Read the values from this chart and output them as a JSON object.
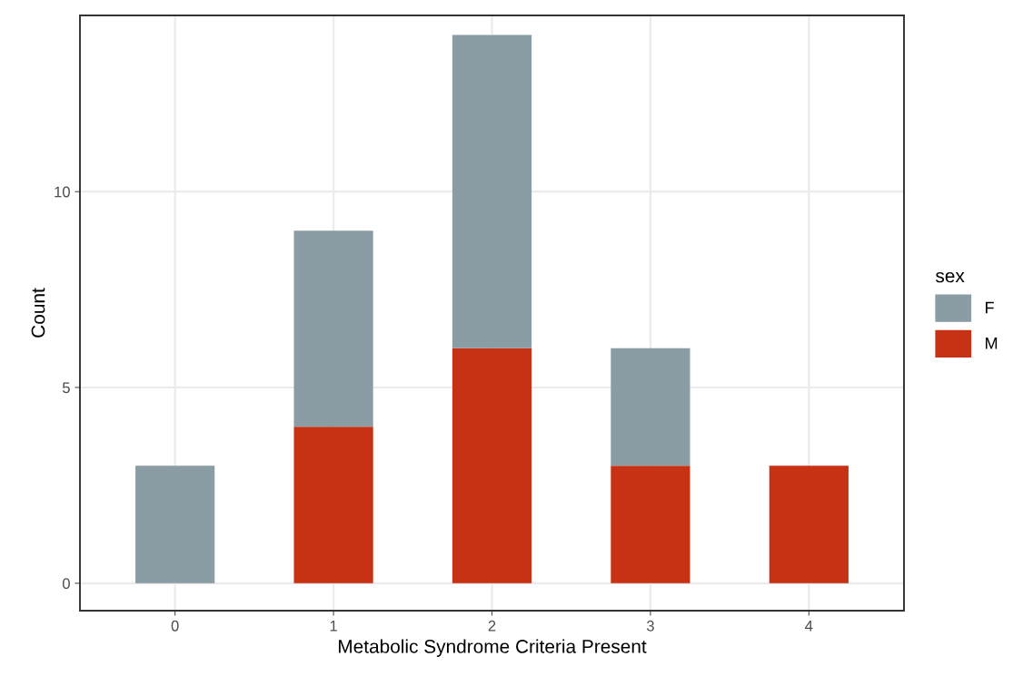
{
  "chart_data": {
    "type": "bar",
    "stacked": true,
    "xlabel": "Metabolic Syndrome Criteria Present",
    "ylabel": "Count",
    "legend_title": "sex",
    "categories": [
      "0",
      "1",
      "2",
      "3",
      "4"
    ],
    "series": [
      {
        "name": "M",
        "color": "#c83214",
        "values": [
          0,
          4,
          6,
          3,
          3
        ]
      },
      {
        "name": "F",
        "color": "#8a9da4",
        "values": [
          3,
          5,
          8,
          3,
          0
        ]
      }
    ],
    "ylim": [
      -0.7,
      14.5
    ],
    "yticks": [
      0,
      5,
      10
    ],
    "grid": true,
    "legend": "right"
  }
}
